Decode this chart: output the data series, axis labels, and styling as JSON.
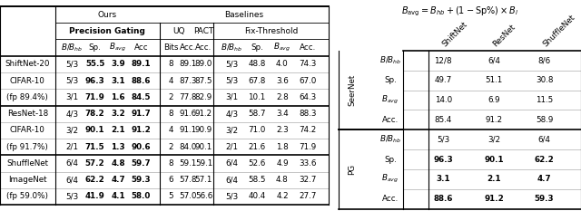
{
  "left_table": {
    "row_groups": [
      {
        "label_lines": [
          "ShiftNet-20",
          "CIFAR-10",
          "(fp 89.4%)"
        ],
        "rows": [
          {
            "pg": [
              "5/3",
              "55.5",
              "3.9",
              "89.1"
            ],
            "uq": [
              "8",
              "89.1",
              "89.0"
            ],
            "ft": [
              "5/3",
              "48.8",
              "4.0",
              "74.3"
            ]
          },
          {
            "pg": [
              "5/3",
              "96.3",
              "3.1",
              "88.6"
            ],
            "uq": [
              "4",
              "87.3",
              "87.5"
            ],
            "ft": [
              "5/3",
              "67.8",
              "3.6",
              "67.0"
            ]
          },
          {
            "pg": [
              "3/1",
              "71.9",
              "1.6",
              "84.5"
            ],
            "uq": [
              "2",
              "77.8",
              "82.9"
            ],
            "ft": [
              "3/1",
              "10.1",
              "2.8",
              "64.3"
            ]
          }
        ]
      },
      {
        "label_lines": [
          "ResNet-18",
          "CIFAR-10",
          "(fp 91.7%)"
        ],
        "rows": [
          {
            "pg": [
              "4/3",
              "78.2",
              "3.2",
              "91.7"
            ],
            "uq": [
              "8",
              "91.6",
              "91.2"
            ],
            "ft": [
              "4/3",
              "58.7",
              "3.4",
              "88.3"
            ]
          },
          {
            "pg": [
              "3/2",
              "90.1",
              "2.1",
              "91.2"
            ],
            "uq": [
              "4",
              "91.1",
              "90.9"
            ],
            "ft": [
              "3/2",
              "71.0",
              "2.3",
              "74.2"
            ]
          },
          {
            "pg": [
              "2/1",
              "71.5",
              "1.3",
              "90.6"
            ],
            "uq": [
              "2",
              "84.0",
              "90.1"
            ],
            "ft": [
              "2/1",
              "21.6",
              "1.8",
              "71.9"
            ]
          }
        ]
      },
      {
        "label_lines": [
          "ShuffleNet",
          "ImageNet",
          "(fp 59.0%)"
        ],
        "rows": [
          {
            "pg": [
              "6/4",
              "57.2",
              "4.8",
              "59.7"
            ],
            "uq": [
              "8",
              "59.1",
              "59.1"
            ],
            "ft": [
              "6/4",
              "52.6",
              "4.9",
              "33.6"
            ]
          },
          {
            "pg": [
              "6/4",
              "62.2",
              "4.7",
              "59.3"
            ],
            "uq": [
              "6",
              "57.8",
              "57.1"
            ],
            "ft": [
              "6/4",
              "58.5",
              "4.8",
              "32.7"
            ]
          },
          {
            "pg": [
              "5/3",
              "41.9",
              "4.1",
              "58.0"
            ],
            "uq": [
              "5",
              "57.0",
              "56.6"
            ],
            "ft": [
              "5/3",
              "40.4",
              "4.2",
              "27.7"
            ]
          }
        ]
      }
    ]
  },
  "right_table": {
    "col_headers": [
      "ShiftNet",
      "ResNet",
      "ShuffleNet"
    ],
    "row_groups": [
      {
        "label": "SeerNet",
        "rows": [
          [
            "B/B_hb",
            "12/8",
            "6/4",
            "8/6"
          ],
          [
            "Sp.",
            "49.7",
            "51.1",
            "30.8"
          ],
          [
            "B_avg",
            "14.0",
            "6.9",
            "11.5"
          ],
          [
            "Acc.",
            "85.4",
            "91.2",
            "58.9"
          ]
        ],
        "bold_rows": []
      },
      {
        "label": "PG",
        "rows": [
          [
            "B/B_hb",
            "5/3",
            "3/2",
            "6/4"
          ],
          [
            "Sp.",
            "96.3",
            "90.1",
            "62.2"
          ],
          [
            "B_avg",
            "3.1",
            "2.1",
            "4.7"
          ],
          [
            "Acc.",
            "88.6",
            "91.2",
            "59.3"
          ]
        ],
        "bold_rows": [
          1,
          2,
          3
        ]
      }
    ]
  }
}
